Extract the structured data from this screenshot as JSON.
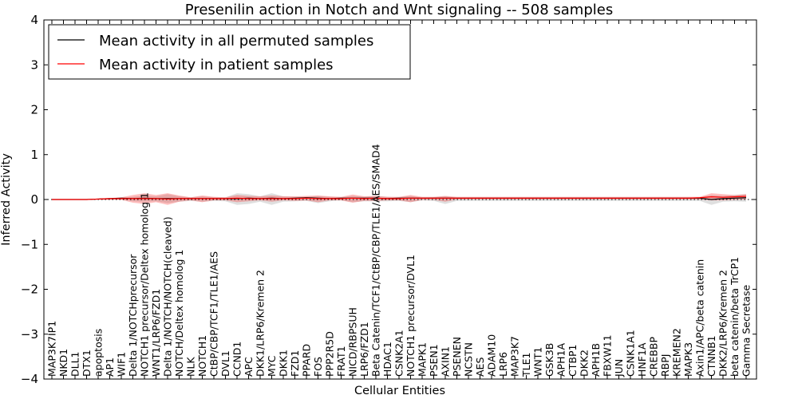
{
  "chart_data": {
    "type": "line",
    "title": "Presenilin action in Notch and Wnt signaling -- 508 samples",
    "xlabel": "Cellular Entities",
    "ylabel": "Inferred Activity",
    "ylim": [
      -4,
      4
    ],
    "yticks": [
      -4,
      -3,
      -2,
      -1,
      0,
      1,
      2,
      3,
      4
    ],
    "ytick_labels": [
      "−4",
      "−3",
      "−2",
      "−1",
      "0",
      "1",
      "2",
      "3",
      "4"
    ],
    "grid": false,
    "legend_position": "top-left",
    "reference_line": {
      "y": 0,
      "style": "dotted",
      "color": "#000000"
    },
    "categories": [
      "MAP3K7IP1",
      "NKD1",
      "DLL1",
      "DTX1",
      "apoptosis",
      "AP1",
      "WIF1",
      "Delta 1/NOTCHprecursor",
      "NOTCH1 precursor/Deltex homolog 1",
      "WNT1/LRP6/FZD1",
      "Delta 1/NOTCH/NOTCH(cleaved)",
      "NOTCH/Deltex homolog 1",
      "NLK",
      "NOTCH1",
      "CtBP/CBP/TCF1/TLE1/AES",
      "DVL1",
      "CCND1",
      "APC",
      "DKK1/LRP6/Kremen 2",
      "MYC",
      "DKK1",
      "FZD1",
      "PPARD",
      "FOS",
      "PPP2R5D",
      "FRAT1",
      "NICD/RBPSUH",
      "LRP6/FZD1",
      "Beta Catenin/TCF1/CtBP/CBP/TLE1/AES/SMAD4",
      "HDAC1",
      "CSNK2A1",
      "NOTCH1 precursor/DVL1",
      "MAPK1",
      "PSEN1",
      "AXIN1",
      "PSENEN",
      "NCSTN",
      "AES",
      "ADAM10",
      "LRP6",
      "MAP3K7",
      "TLE1",
      "WNT1",
      "GSK3B",
      "APH1A",
      "CTBP1",
      "DKK2",
      "APH1B",
      "FBXW11",
      "JUN",
      "CSNK1A1",
      "HNF1A",
      "CREBBP",
      "RBPJ",
      "KREMEN2",
      "MAPK3",
      "Axin1/APC/beta catenin",
      "CTNNB1",
      "DKK2/LRP6/Kremen 2",
      "beta catenin/beta TrCP1",
      "Gamma Secretase"
    ],
    "series": [
      {
        "name": "Mean activity in all permuted samples",
        "color": "#000000",
        "values": [
          0,
          0,
          0,
          0,
          0.01,
          0.02,
          0.03,
          0.02,
          0.03,
          0.02,
          0.02,
          0.02,
          0.02,
          0.02,
          0.02,
          0.02,
          0.02,
          0.03,
          0.02,
          0.03,
          0.02,
          0.03,
          0.04,
          0.03,
          0.02,
          0.03,
          0.03,
          0.03,
          0.03,
          0.02,
          0.03,
          0.03,
          0.03,
          0.03,
          0.03,
          0.03,
          0.03,
          0.03,
          0.03,
          0.03,
          0.03,
          0.03,
          0.03,
          0.03,
          0.03,
          0.03,
          0.03,
          0.03,
          0.03,
          0.03,
          0.03,
          0.03,
          0.03,
          0.03,
          0.03,
          0.03,
          0.03,
          0.0,
          0.02,
          0.03,
          0.04
        ],
        "band_low": [
          0,
          0,
          0,
          0,
          0,
          0,
          0,
          -0.04,
          -0.05,
          -0.04,
          -0.08,
          -0.05,
          -0.03,
          -0.05,
          -0.03,
          -0.04,
          -0.12,
          -0.1,
          -0.05,
          -0.12,
          -0.05,
          -0.04,
          -0.03,
          -0.08,
          -0.04,
          -0.02,
          -0.06,
          -0.04,
          -0.04,
          -0.04,
          -0.03,
          -0.06,
          -0.02,
          -0.03,
          -0.1,
          -0.03,
          -0.03,
          -0.03,
          -0.03,
          -0.03,
          -0.03,
          -0.03,
          -0.03,
          -0.03,
          -0.03,
          -0.03,
          -0.03,
          -0.03,
          -0.03,
          -0.03,
          -0.03,
          -0.03,
          -0.03,
          -0.03,
          -0.03,
          -0.03,
          -0.03,
          -0.12,
          -0.05,
          -0.04,
          -0.05
        ],
        "band_high": [
          0,
          0,
          0,
          0,
          0.02,
          0.03,
          0.04,
          0.06,
          0.09,
          0.07,
          0.12,
          0.07,
          0.05,
          0.07,
          0.05,
          0.05,
          0.14,
          0.12,
          0.07,
          0.14,
          0.07,
          0.06,
          0.06,
          0.08,
          0.06,
          0.05,
          0.08,
          0.06,
          0.08,
          0.06,
          0.05,
          0.08,
          0.04,
          0.05,
          0.07,
          0.04,
          0.04,
          0.04,
          0.04,
          0.04,
          0.04,
          0.04,
          0.04,
          0.04,
          0.04,
          0.04,
          0.04,
          0.04,
          0.04,
          0.04,
          0.04,
          0.04,
          0.04,
          0.04,
          0.04,
          0.04,
          0.04,
          0.1,
          0.08,
          0.1,
          0.12
        ]
      },
      {
        "name": "Mean activity in patient samples",
        "color": "#ff0000",
        "values": [
          0,
          0,
          0,
          0,
          0.01,
          0.02,
          0.02,
          0.02,
          0.02,
          0.02,
          0.01,
          0.02,
          0.02,
          0.02,
          0.02,
          0.02,
          0.03,
          0.02,
          0.02,
          0.02,
          0.02,
          0.02,
          0.03,
          0.02,
          0.02,
          0.02,
          0.03,
          0.02,
          0.03,
          0.02,
          0.02,
          0.03,
          0.03,
          0.03,
          0.03,
          0.03,
          0.03,
          0.03,
          0.03,
          0.03,
          0.03,
          0.03,
          0.03,
          0.03,
          0.03,
          0.03,
          0.03,
          0.03,
          0.03,
          0.03,
          0.03,
          0.03,
          0.03,
          0.03,
          0.03,
          0.03,
          0.04,
          0.06,
          0.05,
          0.06,
          0.07
        ],
        "band_low": [
          0,
          0,
          0,
          0,
          -0.01,
          -0.01,
          -0.01,
          -0.07,
          -0.1,
          -0.06,
          -0.12,
          -0.05,
          -0.02,
          -0.06,
          -0.02,
          -0.02,
          -0.06,
          -0.04,
          -0.02,
          -0.05,
          -0.02,
          -0.03,
          -0.02,
          -0.06,
          -0.02,
          -0.02,
          -0.07,
          -0.03,
          -0.03,
          -0.02,
          -0.02,
          -0.06,
          -0.01,
          -0.01,
          -0.05,
          0.0,
          0.0,
          0.0,
          0.0,
          0.0,
          0.0,
          0.0,
          0.0,
          0.0,
          0.0,
          0.0,
          0.0,
          0.0,
          0.0,
          0.0,
          0.0,
          0.0,
          0.0,
          0.0,
          0.0,
          0.0,
          0.0,
          -0.02,
          -0.02,
          -0.01,
          0.0
        ],
        "band_high": [
          0,
          0,
          0,
          0,
          0.02,
          0.03,
          0.05,
          0.1,
          0.14,
          0.1,
          0.14,
          0.09,
          0.05,
          0.09,
          0.06,
          0.05,
          0.1,
          0.08,
          0.07,
          0.09,
          0.07,
          0.07,
          0.08,
          0.09,
          0.07,
          0.06,
          0.11,
          0.07,
          0.08,
          0.06,
          0.06,
          0.1,
          0.06,
          0.06,
          0.08,
          0.06,
          0.06,
          0.06,
          0.06,
          0.06,
          0.06,
          0.06,
          0.06,
          0.06,
          0.06,
          0.06,
          0.06,
          0.06,
          0.06,
          0.06,
          0.06,
          0.06,
          0.06,
          0.06,
          0.06,
          0.06,
          0.06,
          0.14,
          0.12,
          0.1,
          0.12
        ]
      }
    ]
  }
}
